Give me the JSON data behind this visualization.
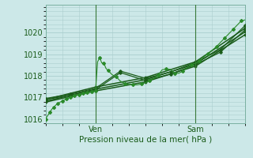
{
  "background_color": "#cce8e8",
  "grid_color": "#aacece",
  "line_color": "#1a5c1a",
  "line_color_bright": "#2a8a2a",
  "ylim": [
    1015.8,
    1021.3
  ],
  "xlim": [
    0,
    96
  ],
  "yticks": [
    1016,
    1017,
    1018,
    1019,
    1020
  ],
  "xtick_positions": [
    24,
    72
  ],
  "xtick_labels": [
    "Ven",
    "Sam"
  ],
  "xlabel": "Pression niveau de la mer( hPa )",
  "vline_positions": [
    24,
    72
  ],
  "series1_x": [
    0,
    1,
    2,
    3,
    4,
    5,
    6,
    7,
    8,
    9,
    10,
    11,
    12,
    13,
    14,
    15,
    16,
    17,
    18,
    19,
    20,
    21,
    22,
    23,
    24,
    25,
    26,
    27,
    28,
    29,
    30,
    32,
    34,
    36,
    38,
    40,
    42,
    44,
    46,
    48,
    50,
    52,
    54,
    56,
    58,
    60,
    62,
    64,
    66,
    68,
    70,
    72,
    74,
    76,
    78,
    80,
    82,
    84,
    86,
    88,
    90,
    92,
    94,
    96
  ],
  "series1_y": [
    1016.0,
    1016.15,
    1016.3,
    1016.45,
    1016.55,
    1016.65,
    1016.72,
    1016.78,
    1016.83,
    1016.88,
    1016.92,
    1016.96,
    1017.0,
    1017.03,
    1017.07,
    1017.1,
    1017.13,
    1017.16,
    1017.18,
    1017.2,
    1017.22,
    1017.24,
    1017.26,
    1017.28,
    1017.3,
    1018.65,
    1018.85,
    1018.6,
    1018.6,
    1018.35,
    1018.25,
    1018.05,
    1017.95,
    1017.75,
    1017.65,
    1017.6,
    1017.58,
    1017.58,
    1017.62,
    1017.68,
    1017.78,
    1017.88,
    1018.02,
    1018.28,
    1018.32,
    1018.3,
    1018.12,
    1018.12,
    1018.22,
    1018.38,
    1018.52,
    1018.58,
    1018.68,
    1018.88,
    1019.02,
    1019.18,
    1019.35,
    1019.55,
    1019.75,
    1019.95,
    1020.15,
    1020.35,
    1020.55,
    1020.6
  ],
  "series2_x": [
    0,
    12,
    24,
    36,
    48,
    60,
    72,
    84,
    96
  ],
  "series2_y": [
    1016.9,
    1017.1,
    1017.35,
    1018.15,
    1017.78,
    1018.08,
    1018.52,
    1019.1,
    1020.15
  ],
  "series3_x": [
    0,
    12,
    24,
    36,
    48,
    60,
    72,
    84,
    96
  ],
  "series3_y": [
    1016.95,
    1017.15,
    1017.42,
    1018.22,
    1017.88,
    1018.18,
    1018.62,
    1019.22,
    1020.35
  ],
  "series4_x": [
    0,
    24,
    48,
    72,
    96
  ],
  "series4_y": [
    1016.82,
    1017.38,
    1017.82,
    1018.55,
    1020.05
  ],
  "series5_x": [
    0,
    24,
    48,
    72,
    96
  ],
  "series5_y": [
    1016.9,
    1017.48,
    1017.92,
    1018.65,
    1020.22
  ],
  "series6_x": [
    0,
    24,
    48,
    72,
    96
  ],
  "series6_y": [
    1016.78,
    1017.3,
    1017.72,
    1018.45,
    1019.92
  ]
}
